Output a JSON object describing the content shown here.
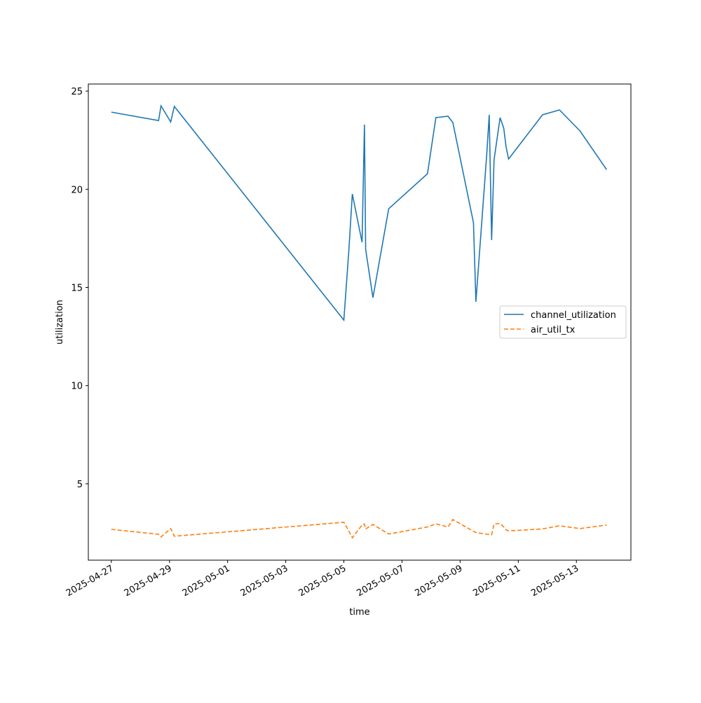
{
  "chart_data": {
    "type": "line",
    "xlabel": "time",
    "ylabel": "utilization",
    "x": [
      "2025-04-27 00:00",
      "2025-04-28 15:00",
      "2025-04-28 17:00",
      "2025-04-29 01:00",
      "2025-04-29 04:00",
      "2025-05-05 00:00",
      "2025-05-05 04:00",
      "2025-05-05 07:00",
      "2025-05-05 15:00",
      "2025-05-05 17:00",
      "2025-05-05 18:00",
      "2025-05-06 00:00",
      "2025-05-06 13:00",
      "2025-05-07 21:00",
      "2025-05-08 04:00",
      "2025-05-08 14:00",
      "2025-05-08 18:00",
      "2025-05-09 11:00",
      "2025-05-09 13:00",
      "2025-05-09 22:00",
      "2025-05-10 00:00",
      "2025-05-10 02:00",
      "2025-05-10 04:00",
      "2025-05-10 09:00",
      "2025-05-10 12:00",
      "2025-05-10 14:00",
      "2025-05-10 16:00",
      "2025-05-11 20:00",
      "2025-05-12 10:00",
      "2025-05-13 03:00",
      "2025-05-14 01:00"
    ],
    "series": [
      {
        "name": "channel_utilization",
        "color": "#1f77b4",
        "dash": "solid",
        "values": [
          23.93,
          23.5,
          24.25,
          23.43,
          24.22,
          13.34,
          16.8,
          19.76,
          17.3,
          23.29,
          16.94,
          14.48,
          19.01,
          20.79,
          23.65,
          23.72,
          23.4,
          18.3,
          14.27,
          21.8,
          23.79,
          17.41,
          21.5,
          23.65,
          23.11,
          22.15,
          21.54,
          23.79,
          24.04,
          22.97,
          21.0
        ]
      },
      {
        "name": "air_util_tx",
        "color": "#ff7f0e",
        "dash": "dashed",
        "values": [
          2.68,
          2.43,
          2.29,
          2.72,
          2.33,
          3.04,
          2.6,
          2.25,
          2.9,
          2.95,
          2.7,
          2.93,
          2.44,
          2.8,
          2.96,
          2.8,
          3.18,
          2.58,
          2.52,
          2.43,
          2.42,
          2.4,
          2.95,
          2.98,
          2.8,
          2.65,
          2.6,
          2.7,
          2.86,
          2.72,
          2.9
        ]
      }
    ],
    "xlim": [
      "2025-04-26 05:00",
      "2025-05-14 21:00"
    ],
    "xticks": [
      "2025-04-27",
      "2025-04-29",
      "2025-05-01",
      "2025-05-03",
      "2025-05-05",
      "2025-05-07",
      "2025-05-09",
      "2025-05-11",
      "2025-05-13"
    ],
    "ylim": [
      1.11,
      25.36
    ],
    "yticks": [
      5,
      10,
      15,
      20,
      25
    ],
    "grid": false,
    "legend": "center right"
  }
}
